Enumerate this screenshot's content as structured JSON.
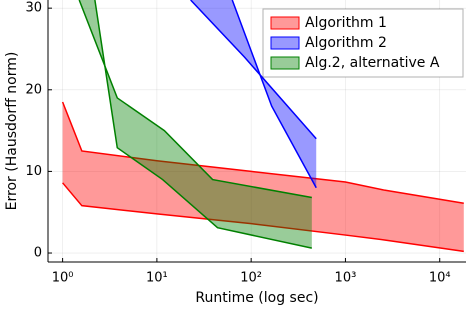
{
  "chart_data": {
    "type": "band",
    "xlabel": "Runtime (log sec)",
    "ylabel": "Error (Hausdorff norm)",
    "xscale": "log",
    "xlim": [
      0.7,
      19000
    ],
    "ylim": [
      -1.1,
      31
    ],
    "xticks": [
      {
        "value": 1,
        "label": "10⁰"
      },
      {
        "value": 10,
        "label": "10¹"
      },
      {
        "value": 100,
        "label": "10²"
      },
      {
        "value": 1000,
        "label": "10³"
      },
      {
        "value": 10000,
        "label": "10⁴"
      }
    ],
    "yticks": [
      0,
      10,
      20,
      30
    ],
    "grid": true,
    "legend": "top-right",
    "series": [
      {
        "name": "Algorithm 1",
        "color": "#ff0000",
        "x_upper": [
          1,
          1.6,
          10,
          100,
          1000,
          2600,
          18000
        ],
        "upper": [
          18.5,
          12.5,
          11.3,
          10,
          8.7,
          7.7,
          6.1
        ],
        "x_lower": [
          1,
          1.6,
          10,
          100,
          1000,
          2600,
          18000
        ],
        "lower": [
          8.6,
          5.8,
          4.8,
          3.6,
          2.2,
          1.6,
          0.2
        ]
      },
      {
        "name": "Algorithm 2",
        "color": "#0000ff",
        "x_upper": [
          22.8,
          85,
          490
        ],
        "upper": [
          31,
          24,
          14
        ],
        "x_lower": [
          63,
          165,
          490
        ],
        "lower": [
          31,
          18,
          8
        ]
      },
      {
        "name": "Alg.2, alternative A",
        "color": "#008000",
        "x_upper": [
          1.5,
          3.8,
          12,
          39,
          440
        ],
        "upper": [
          31,
          19,
          15,
          9,
          6.8
        ],
        "x_lower": [
          2.2,
          3.8,
          11.5,
          44,
          440
        ],
        "lower": [
          31,
          12.9,
          9,
          3.1,
          0.6
        ]
      }
    ]
  }
}
